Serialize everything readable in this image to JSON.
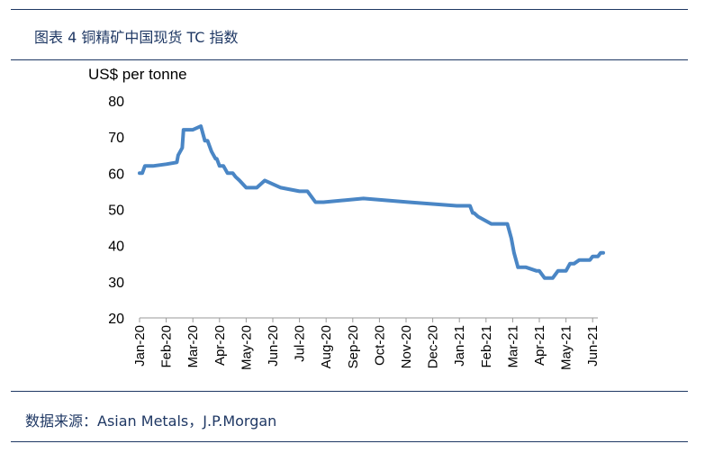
{
  "figure": {
    "title": "图表 4  铜精矿中国现货 TC 指数",
    "source": "数据来源：Asian Metals，J.P.Morgan"
  },
  "colors": {
    "line": "#4a86c5",
    "rule": "#1f3864",
    "text": "#1f3864"
  },
  "chart_data": {
    "type": "line",
    "title": "",
    "ylabel": "US$ per tonne",
    "xlabel": "",
    "ylim": [
      20,
      80
    ],
    "yticks": [
      80,
      70,
      60,
      50,
      40,
      30,
      20
    ],
    "grid": false,
    "categories": [
      "Jan-20",
      "Feb-20",
      "Mar-20",
      "Apr-20",
      "May-20",
      "Jun-20",
      "Jul-20",
      "Aug-20",
      "Sep-20",
      "Oct-20",
      "Nov-20",
      "Dec-20",
      "Jan-21",
      "Feb-21",
      "Mar-21",
      "Apr-21",
      "May-21",
      "Jun-21"
    ],
    "series": [
      {
        "x": [
          0,
          0.1,
          0.2,
          0.5,
          1.0,
          1.4,
          1.45,
          1.6,
          1.65,
          1.8,
          1.9,
          2.0,
          2.3,
          2.45,
          2.55,
          2.7,
          2.85,
          2.9,
          3.0,
          3.15,
          3.3,
          3.5,
          3.6,
          3.75,
          4.0,
          4.2,
          4.4,
          4.7,
          5.3,
          6.0,
          6.3,
          6.6,
          6.9,
          8.4,
          10.1,
          11.9,
          12.2,
          12.4,
          12.5,
          12.55,
          12.7,
          13.2,
          13.8,
          13.95,
          14.05,
          14.2,
          14.5,
          14.9,
          15.0,
          15.2,
          15.3,
          15.5,
          15.7,
          16.0,
          16.15,
          16.3,
          16.5,
          16.9,
          17.0,
          17.2,
          17.3,
          17.4
        ],
        "values": [
          60,
          60,
          62,
          62,
          62.5,
          63,
          65,
          67,
          72,
          72,
          72,
          72,
          73,
          69,
          69,
          66,
          64,
          64,
          62,
          62,
          60,
          60,
          59,
          58,
          56,
          56,
          56,
          58,
          56,
          55,
          55,
          52,
          52,
          53,
          52,
          51,
          51,
          51,
          49,
          49,
          48,
          46,
          46,
          42,
          38,
          34,
          34,
          33,
          33,
          31,
          31,
          31,
          33,
          33,
          35,
          35,
          36,
          36,
          37,
          37,
          38,
          38
        ]
      }
    ]
  }
}
